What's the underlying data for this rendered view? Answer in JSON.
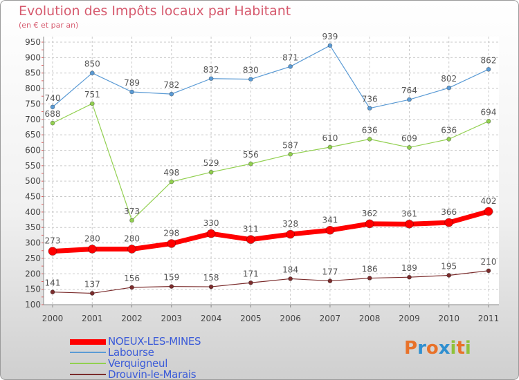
{
  "title": "Evolution des Impôts locaux par Habitant",
  "subtitle": "(en € et par an)",
  "logo": {
    "text": "Proxiti",
    "colors": [
      "#e8722a",
      "#2f8fd0",
      "#e8722a",
      "#2f8fd0",
      "#8fc23a",
      "#e8722a",
      "#8fc23a"
    ]
  },
  "chart_data": {
    "type": "line",
    "title": "Evolution des Impôts locaux par Habitant",
    "subtitle": "(en € et par an)",
    "xlabel": "",
    "ylabel": "",
    "x": [
      "2000",
      "2001",
      "2002",
      "2003",
      "2004",
      "2005",
      "2006",
      "2007",
      "2008",
      "2009",
      "2010",
      "2011"
    ],
    "ylim": [
      100,
      950
    ],
    "yticks": [
      100,
      150,
      200,
      250,
      300,
      350,
      400,
      450,
      500,
      550,
      600,
      650,
      700,
      750,
      800,
      850,
      900,
      950
    ],
    "grid": true,
    "legend_position": "bottom-left",
    "series": [
      {
        "name": "NOEUX-LES-MINES",
        "color": "#ff0000",
        "values": [
          273,
          280,
          280,
          298,
          330,
          311,
          328,
          341,
          362,
          361,
          366,
          402
        ]
      },
      {
        "name": "Labourse",
        "color": "#5b9bd5",
        "values": [
          740,
          850,
          789,
          782,
          832,
          830,
          871,
          939,
          736,
          764,
          802,
          862
        ]
      },
      {
        "name": "Verquigneul",
        "color": "#92d050",
        "values": [
          688,
          751,
          373,
          498,
          529,
          556,
          587,
          610,
          636,
          609,
          636,
          694
        ]
      },
      {
        "name": "Drouvin-le-Marais",
        "color": "#7b2c2c",
        "values": [
          141,
          137,
          156,
          159,
          158,
          171,
          184,
          177,
          186,
          189,
          195,
          210
        ]
      }
    ]
  }
}
